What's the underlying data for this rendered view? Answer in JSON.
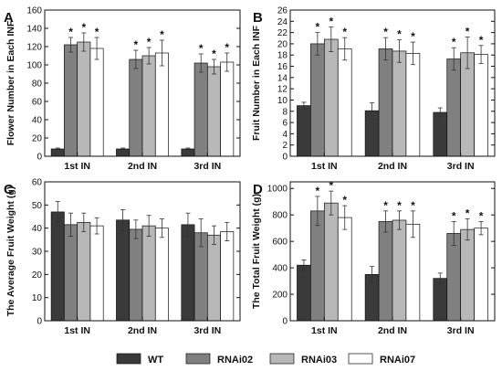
{
  "colors": {
    "WT": "#3a3a3a",
    "RNAi02": "#808080",
    "RNAi03": "#b8b8b8",
    "RNAi07": "#ffffff",
    "axis": "#111111",
    "error_bar": "#333333"
  },
  "legend": [
    {
      "key": "WT",
      "label": "WT"
    },
    {
      "key": "RNAi02",
      "label": "RNAi02"
    },
    {
      "key": "RNAi03",
      "label": "RNAi03"
    },
    {
      "key": "RNAi07",
      "label": "RNAi07"
    }
  ],
  "chart_data": [
    {
      "panel": "A",
      "type": "bar",
      "ylabel": "Flower Number in Each INF",
      "categories": [
        "1st IN",
        "2nd IN",
        "3rd IN"
      ],
      "ylim": [
        0,
        160
      ],
      "yticks": [
        0,
        20,
        40,
        60,
        80,
        100,
        120,
        140,
        160
      ],
      "significance_marker": "*",
      "series": [
        {
          "name": "WT",
          "values": [
            8,
            8,
            8
          ],
          "errors": [
            1,
            1,
            1
          ],
          "significant": [
            false,
            false,
            false
          ]
        },
        {
          "name": "RNAi02",
          "values": [
            122,
            106,
            102
          ],
          "errors": [
            8,
            10,
            10
          ],
          "significant": [
            true,
            true,
            true
          ]
        },
        {
          "name": "RNAi03",
          "values": [
            125,
            110,
            98
          ],
          "errors": [
            10,
            9,
            8
          ],
          "significant": [
            true,
            true,
            true
          ]
        },
        {
          "name": "RNAi07",
          "values": [
            118,
            113,
            103
          ],
          "errors": [
            12,
            14,
            10
          ],
          "significant": [
            true,
            true,
            true
          ]
        }
      ]
    },
    {
      "panel": "B",
      "type": "bar",
      "ylabel": "Fruit Number in Each INF",
      "categories": [
        "1st IN",
        "2nd IN",
        "3rd IN"
      ],
      "ylim": [
        0,
        26
      ],
      "yticks": [
        0,
        2,
        4,
        6,
        8,
        10,
        12,
        14,
        16,
        18,
        20,
        22,
        24,
        26
      ],
      "significance_marker": "*",
      "series": [
        {
          "name": "WT",
          "values": [
            9,
            8.1,
            7.8
          ],
          "errors": [
            0.6,
            1.4,
            0.8
          ],
          "significant": [
            false,
            false,
            false
          ]
        },
        {
          "name": "RNAi02",
          "values": [
            20,
            19.1,
            17.3
          ],
          "errors": [
            2,
            2,
            2
          ],
          "significant": [
            true,
            true,
            true
          ]
        },
        {
          "name": "RNAi03",
          "values": [
            20.8,
            18.7,
            18.4
          ],
          "errors": [
            2.2,
            2,
            2.8
          ],
          "significant": [
            true,
            true,
            true
          ]
        },
        {
          "name": "RNAi07",
          "values": [
            19.1,
            18.3,
            18.1
          ],
          "errors": [
            2,
            2,
            1.6
          ],
          "significant": [
            true,
            true,
            true
          ]
        }
      ]
    },
    {
      "panel": "C",
      "type": "bar",
      "ylabel": "The Average Fruit Weight (g)",
      "categories": [
        "1st IN",
        "2nd IN",
        "3rd IN"
      ],
      "ylim": [
        0,
        60
      ],
      "yticks": [
        0,
        10,
        20,
        30,
        40,
        50,
        60
      ],
      "series": [
        {
          "name": "WT",
          "values": [
            47,
            43.5,
            41.5
          ],
          "errors": [
            4.5,
            4.5,
            5
          ]
        },
        {
          "name": "RNAi02",
          "values": [
            41.5,
            39.5,
            38
          ],
          "errors": [
            5,
            4,
            6
          ]
        },
        {
          "name": "RNAi03",
          "values": [
            42.5,
            41,
            37
          ],
          "errors": [
            4,
            4.5,
            4
          ]
        },
        {
          "name": "RNAi07",
          "values": [
            41,
            40,
            38.5
          ],
          "errors": [
            3.5,
            4,
            4
          ]
        }
      ]
    },
    {
      "panel": "D",
      "type": "bar",
      "ylabel": "The Total Fruit Weight (g)",
      "categories": [
        "1st IN",
        "2nd IN",
        "3rd IN"
      ],
      "ylim": [
        0,
        1050
      ],
      "yticks": [
        0,
        200,
        400,
        600,
        800,
        1000
      ],
      "significance_marker": "*",
      "series": [
        {
          "name": "WT",
          "values": [
            420,
            350,
            320
          ],
          "errors": [
            40,
            60,
            40
          ],
          "significant": [
            false,
            false,
            false
          ]
        },
        {
          "name": "RNAi02",
          "values": [
            830,
            750,
            660
          ],
          "errors": [
            110,
            80,
            90
          ],
          "significant": [
            true,
            true,
            true
          ]
        },
        {
          "name": "RNAi03",
          "values": [
            890,
            760,
            690
          ],
          "errors": [
            90,
            70,
            80
          ],
          "significant": [
            true,
            true,
            true
          ]
        },
        {
          "name": "RNAi07",
          "values": [
            780,
            730,
            700
          ],
          "errors": [
            90,
            100,
            50
          ],
          "significant": [
            true,
            true,
            true
          ]
        }
      ]
    }
  ]
}
